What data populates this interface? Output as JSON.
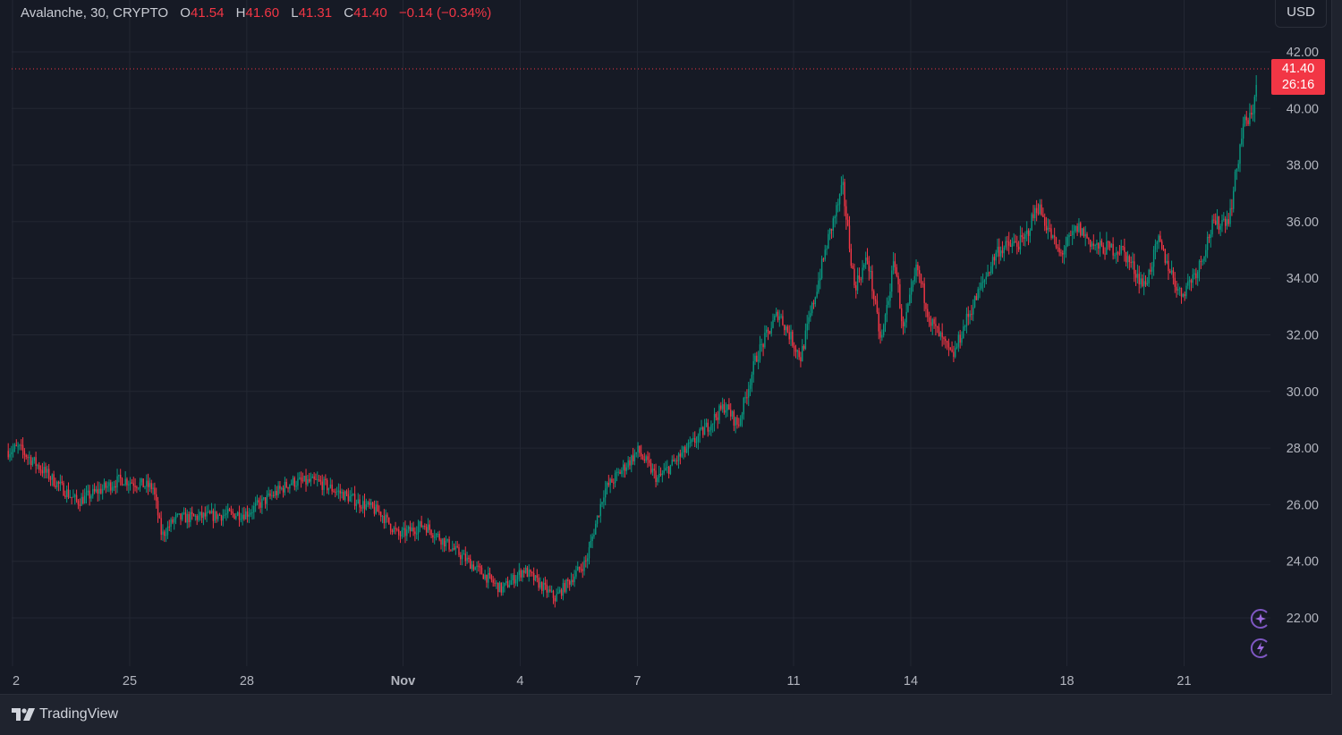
{
  "header": {
    "symbol": "Avalanche, 30, CRYPTO",
    "o_label": "O",
    "o_value": "41.54",
    "h_label": "H",
    "h_value": "41.60",
    "l_label": "L",
    "l_value": "41.31",
    "c_label": "C",
    "c_value": "41.40",
    "change": "−0.14 (−0.34%)"
  },
  "currency_button": "USD",
  "last_price": {
    "value": "41.40",
    "countdown": "26:16"
  },
  "branding": {
    "name": "TradingView"
  },
  "icons": [
    "sparkle-icon",
    "lightning-icon"
  ],
  "colors": {
    "up": "#089981",
    "down": "#f23645",
    "background": "#161a25",
    "grid": "#232733",
    "accent": "#7e57c2"
  },
  "chart_data": {
    "type": "candlestick",
    "title": "Avalanche, 30, CRYPTO",
    "xlabel": "",
    "ylabel": "USD",
    "ylim": [
      20.5,
      42.6
    ],
    "y_ticks": [
      "42.00",
      "40.00",
      "38.00",
      "36.00",
      "34.00",
      "32.00",
      "30.00",
      "28.00",
      "26.00",
      "24.00",
      "22.00"
    ],
    "x_ticks": [
      {
        "label": "2",
        "day": 0
      },
      {
        "label": "25",
        "day": 3
      },
      {
        "label": "28",
        "day": 6
      },
      {
        "label": "Nov",
        "day": 10
      },
      {
        "label": "4",
        "day": 13
      },
      {
        "label": "7",
        "day": 16
      },
      {
        "label": "11",
        "day": 20
      },
      {
        "label": "14",
        "day": 23
      },
      {
        "label": "18",
        "day": 27
      },
      {
        "label": "21",
        "day": 30
      }
    ],
    "grid": true,
    "last_price": 41.4,
    "price_path": [
      [
        -0.11,
        27.9
      ],
      [
        0.16,
        28.0
      ],
      [
        1.65,
        26.1
      ],
      [
        2.79,
        26.9
      ],
      [
        3.6,
        26.6
      ],
      [
        3.82,
        24.9
      ],
      [
        4.16,
        25.5
      ],
      [
        6.0,
        25.7
      ],
      [
        7.14,
        26.8
      ],
      [
        7.83,
        26.8
      ],
      [
        9.43,
        25.7
      ],
      [
        9.89,
        24.9
      ],
      [
        10.53,
        25.3
      ],
      [
        11.49,
        24.2
      ],
      [
        12.52,
        23.0
      ],
      [
        13.09,
        23.7
      ],
      [
        13.89,
        22.7
      ],
      [
        14.69,
        24.0
      ],
      [
        15.15,
        26.5
      ],
      [
        16.02,
        27.9
      ],
      [
        16.52,
        26.9
      ],
      [
        17.44,
        28.2
      ],
      [
        18.24,
        29.5
      ],
      [
        18.58,
        28.8
      ],
      [
        19.04,
        31.2
      ],
      [
        19.61,
        32.8
      ],
      [
        20.18,
        31.2
      ],
      [
        20.87,
        35.3
      ],
      [
        21.26,
        37.2
      ],
      [
        21.56,
        33.7
      ],
      [
        21.9,
        34.7
      ],
      [
        22.24,
        31.7
      ],
      [
        22.59,
        34.7
      ],
      [
        22.81,
        32.1
      ],
      [
        23.16,
        34.4
      ],
      [
        23.5,
        32.5
      ],
      [
        24.07,
        31.2
      ],
      [
        24.42,
        32.5
      ],
      [
        25.22,
        35.0
      ],
      [
        25.9,
        35.3
      ],
      [
        26.25,
        36.6
      ],
      [
        26.82,
        34.8
      ],
      [
        27.28,
        35.8
      ],
      [
        27.73,
        35.1
      ],
      [
        28.42,
        35.0
      ],
      [
        28.99,
        33.7
      ],
      [
        29.34,
        35.3
      ],
      [
        29.91,
        33.4
      ],
      [
        30.37,
        34.4
      ],
      [
        30.71,
        35.8
      ],
      [
        31.17,
        36.2
      ],
      [
        31.51,
        39.4
      ],
      [
        31.74,
        39.7
      ],
      [
        31.88,
        41.4
      ]
    ]
  }
}
